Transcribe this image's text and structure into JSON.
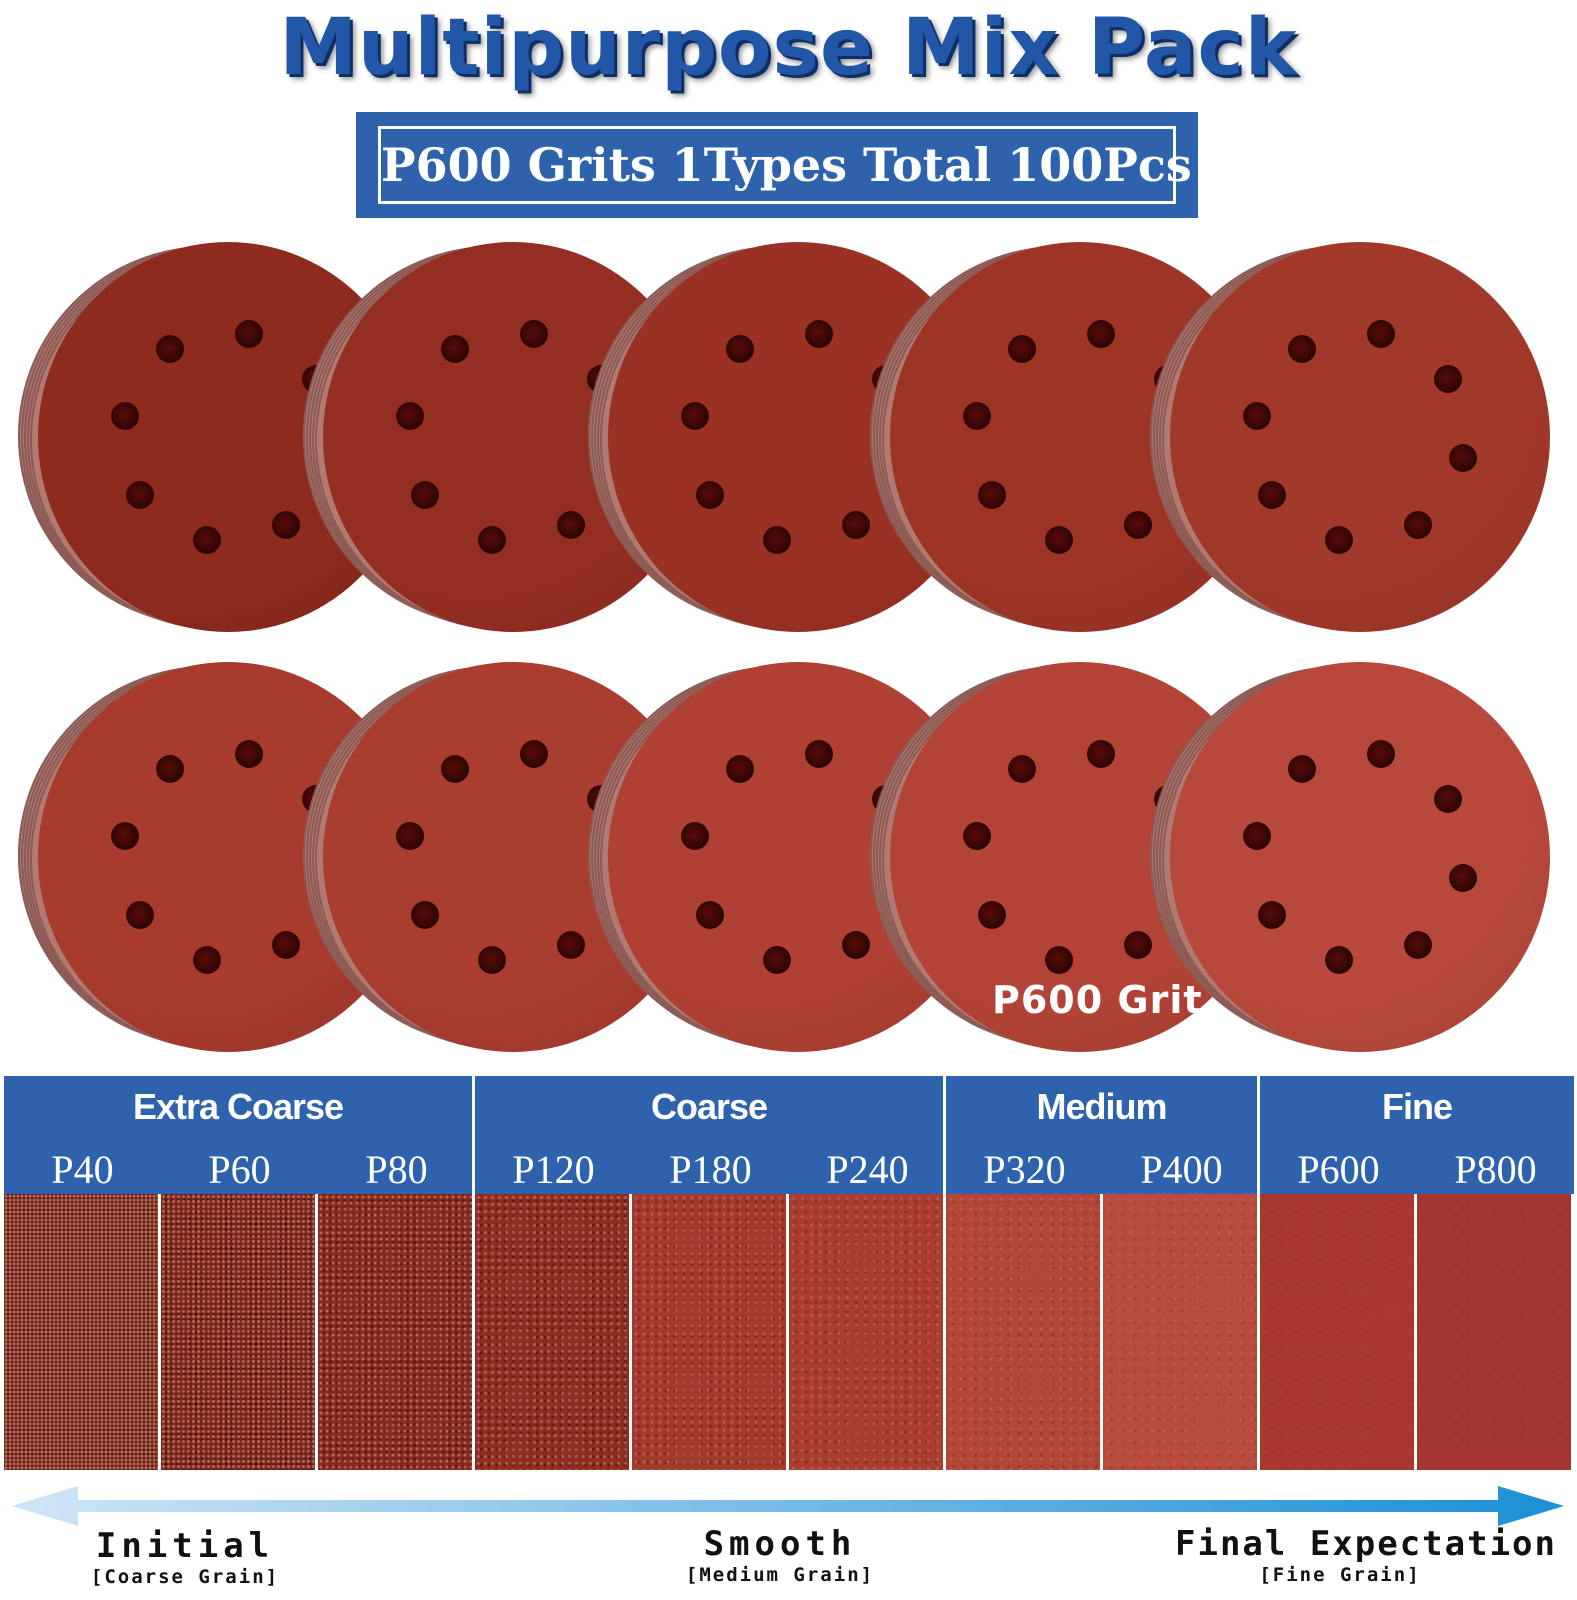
{
  "title": "Multipurpose Mix Pack",
  "subtitle": "P600 Grits 1Types Total 100Pcs",
  "disc_label": "P600 Grit",
  "colors": {
    "brand_blue": "#2f62ad",
    "title_blue": "#2257a8",
    "arrow_light": "#cfe6f5",
    "arrow_dark": "#1c8fd6"
  },
  "categories": [
    {
      "name": "Extra Coarse",
      "grits": [
        "P40",
        "P60",
        "P80"
      ]
    },
    {
      "name": "Coarse",
      "grits": [
        "P120",
        "P180",
        "P240"
      ]
    },
    {
      "name": "Medium",
      "grits": [
        "P320",
        "P400"
      ]
    },
    {
      "name": "Fine",
      "grits": [
        "P600",
        "P800"
      ]
    }
  ],
  "scale": {
    "start": {
      "label": "Initial",
      "sub": "[Coarse Grain]"
    },
    "middle": {
      "label": "Smooth",
      "sub": "[Medium Grain]"
    },
    "end": {
      "label": "Final Expectation",
      "sub": "[Fine Grain]"
    }
  }
}
